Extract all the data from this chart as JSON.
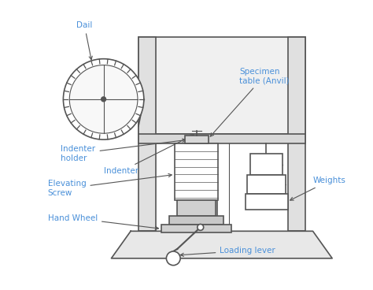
{
  "label_color": "#4a90d9",
  "line_color": "#555555",
  "bg_color": "#ffffff",
  "labels": {
    "dail": "Dail",
    "indenter_holder": "Indenter\nholder",
    "indenter": "Indenter",
    "elevating_screw": "Elevating\nScrew",
    "hand_wheel": "Hand Wheel",
    "specimen_table": "Specimen\ntable (Anvil)",
    "weights": "Weights",
    "loading_lever": "Loading lever"
  },
  "figsize": [
    4.74,
    3.68
  ],
  "dpi": 100
}
